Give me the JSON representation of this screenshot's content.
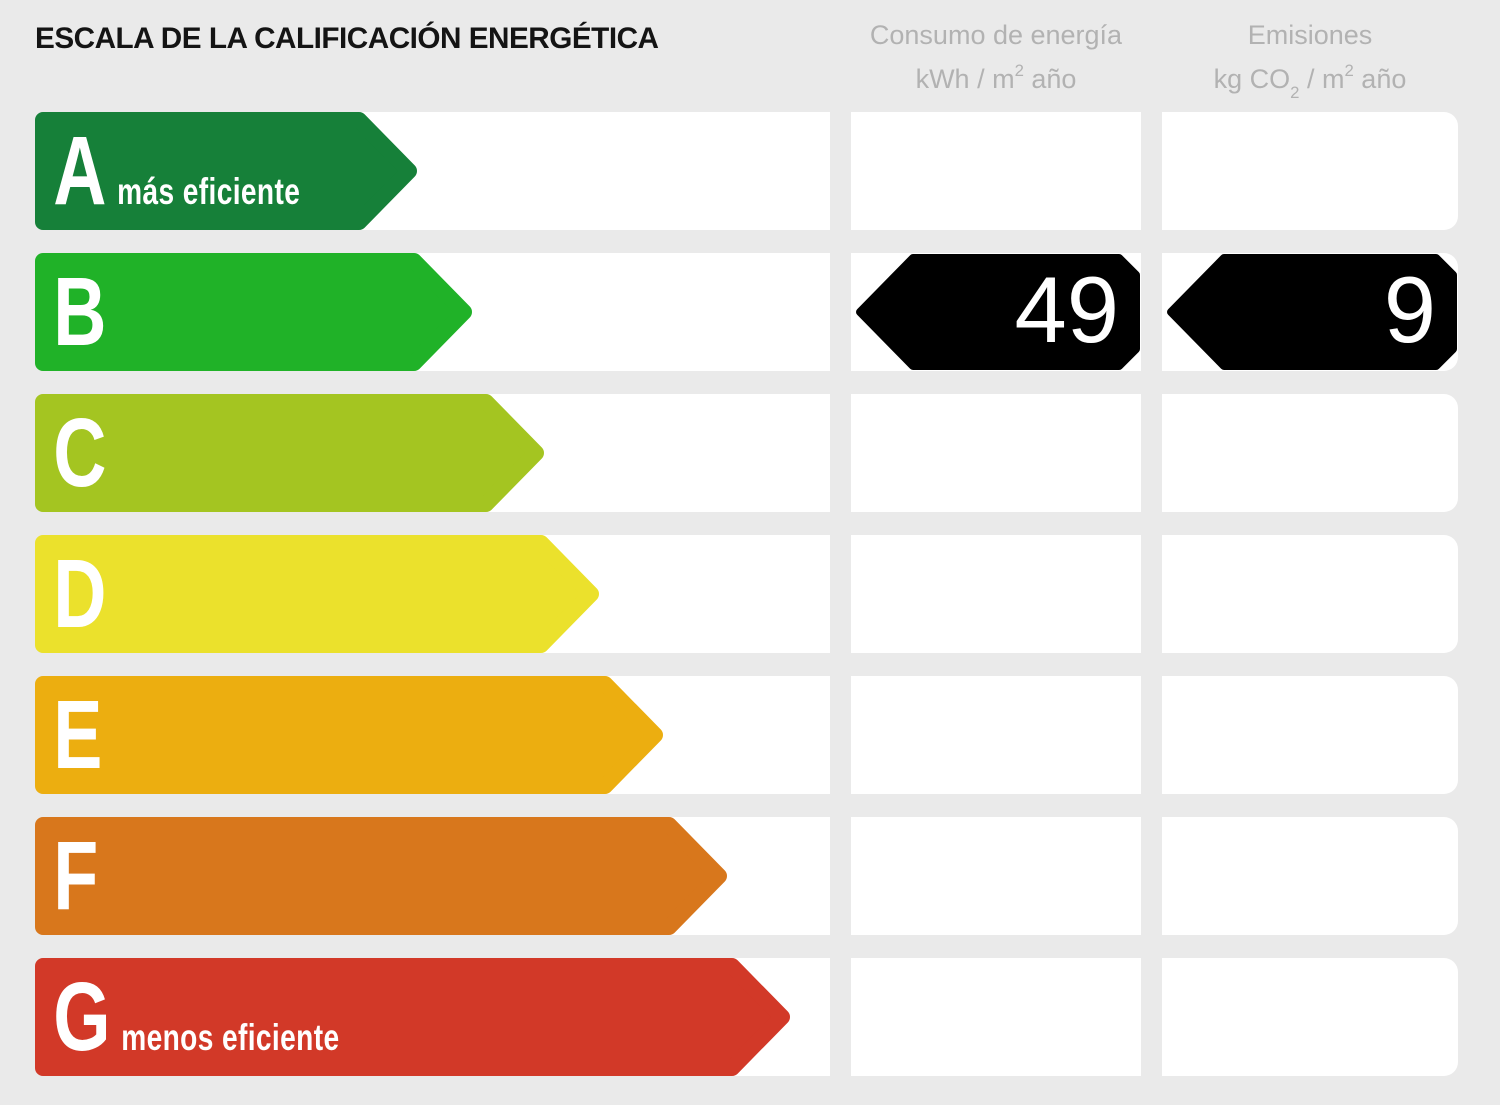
{
  "header": {
    "title": "ESCALA DE LA CALIFICACIÓN ENERGÉTICA"
  },
  "columns": {
    "energy": {
      "title": "Consumo de energía",
      "unit_parts": [
        "kWh / m",
        "2",
        " año"
      ]
    },
    "emissions": {
      "title": "Emisiones",
      "unit_parts": [
        "kg CO",
        "2",
        " / m",
        "2",
        " año"
      ]
    }
  },
  "scale": {
    "rows": [
      {
        "letter": "A",
        "note": "más eficiente",
        "color": "#168039",
        "width_pct": 48
      },
      {
        "letter": "B",
        "note": "",
        "color": "#20b228",
        "width_pct": 55,
        "rated": true
      },
      {
        "letter": "C",
        "note": "",
        "color": "#a4c521",
        "width_pct": 64
      },
      {
        "letter": "D",
        "note": "",
        "color": "#ebe12c",
        "width_pct": 71
      },
      {
        "letter": "E",
        "note": "",
        "color": "#ecae10",
        "width_pct": 79
      },
      {
        "letter": "F",
        "note": "",
        "color": "#d8771c",
        "width_pct": 87
      },
      {
        "letter": "G",
        "note": "menos eficiente",
        "color": "#d23928",
        "width_pct": 95
      }
    ]
  },
  "rating": {
    "class": "B",
    "energy_value": "49",
    "emissions_value": "9",
    "value_arrow_color": "#000000"
  },
  "chart_data": {
    "type": "bar",
    "title": "ESCALA DE LA CALIFICACIÓN ENERGÉTICA",
    "categories": [
      "A",
      "B",
      "C",
      "D",
      "E",
      "F",
      "G"
    ],
    "values": [
      48,
      55,
      64,
      71,
      79,
      87,
      95
    ],
    "value_note": "bar lengths as % of scale track (decorative standard energy-label lengths)",
    "series": [
      {
        "name": "Consumo de energía (kWh / m2 año)",
        "rated_class": "B",
        "value": 49
      },
      {
        "name": "Emisiones (kg CO2 / m2 año)",
        "rated_class": "B",
        "value": 9
      }
    ],
    "annotations": [
      "más eficiente (A)",
      "menos eficiente (G)"
    ],
    "legend_position": "none",
    "grid": false
  }
}
